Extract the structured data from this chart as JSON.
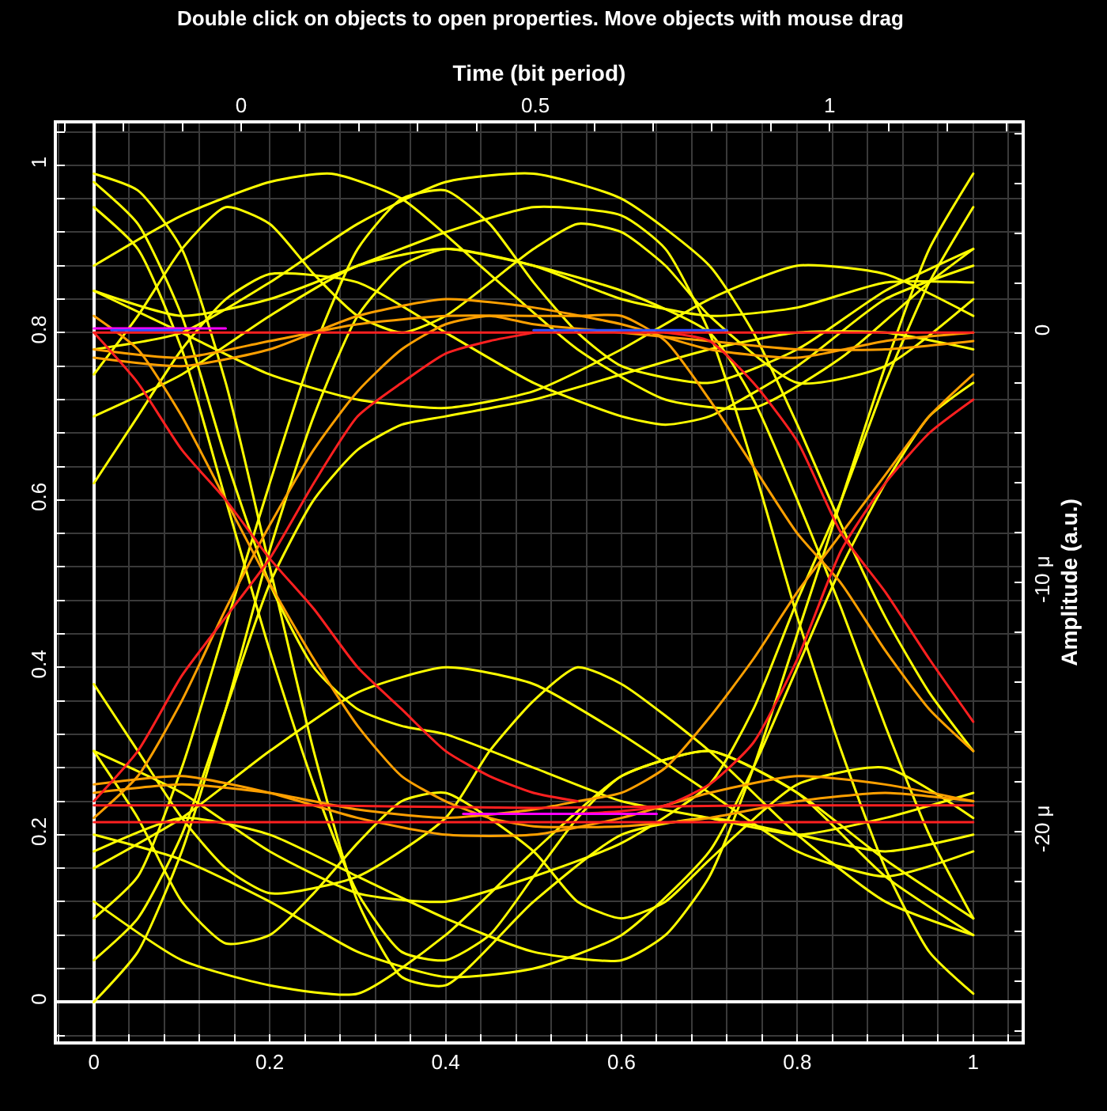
{
  "chart_data": {
    "type": "line",
    "x2label": "Time (bit period)",
    "y2label": "Amplitude (a.u.)",
    "annotations": [
      "Double click on objects to open properties. Move objects with mouse drag"
    ],
    "xlim": [
      -0.042,
      1.055
    ],
    "ylim": [
      -0.047,
      1.05
    ],
    "x2lim": [
      -0.313,
      1.326
    ],
    "y2lim": [
      -28.4,
      8.4
    ],
    "xticks": [
      {
        "value": -0.04,
        "label": null
      },
      0,
      {
        "value": 0.04,
        "label": null
      },
      {
        "value": 0.08,
        "label": null
      },
      {
        "value": 0.12,
        "label": null
      },
      {
        "value": 0.16,
        "label": null
      },
      0.2,
      {
        "value": 0.24,
        "label": null
      },
      {
        "value": 0.28,
        "label": null
      },
      {
        "value": 0.32,
        "label": null
      },
      {
        "value": 0.36,
        "label": null
      },
      0.4,
      {
        "value": 0.44,
        "label": null
      },
      {
        "value": 0.48,
        "label": null
      },
      {
        "value": 0.52,
        "label": null
      },
      {
        "value": 0.56,
        "label": null
      },
      0.6,
      {
        "value": 0.64,
        "label": null
      },
      {
        "value": 0.68,
        "label": null
      },
      {
        "value": 0.72,
        "label": null
      },
      {
        "value": 0.76,
        "label": null
      },
      0.8,
      {
        "value": 0.84,
        "label": null
      },
      {
        "value": 0.88,
        "label": null
      },
      {
        "value": 0.92,
        "label": null
      },
      {
        "value": 0.96,
        "label": null
      },
      1,
      {
        "value": 1.04,
        "label": null
      }
    ],
    "yticks": [
      {
        "value": -0.04,
        "label": null
      },
      0,
      {
        "value": 0.04,
        "label": null
      },
      {
        "value": 0.08,
        "label": null
      },
      {
        "value": 0.12,
        "label": null
      },
      {
        "value": 0.16,
        "label": null
      },
      0.2,
      {
        "value": 0.24,
        "label": null
      },
      {
        "value": 0.28,
        "label": null
      },
      {
        "value": 0.32,
        "label": null
      },
      {
        "value": 0.36,
        "label": null
      },
      0.4,
      {
        "value": 0.44,
        "label": null
      },
      {
        "value": 0.48,
        "label": null
      },
      {
        "value": 0.52,
        "label": null
      },
      {
        "value": 0.56,
        "label": null
      },
      0.6,
      {
        "value": 0.64,
        "label": null
      },
      {
        "value": 0.68,
        "label": null
      },
      {
        "value": 0.72,
        "label": null
      },
      {
        "value": 0.76,
        "label": null
      },
      0.8,
      {
        "value": 0.84,
        "label": null
      },
      {
        "value": 0.88,
        "label": null
      },
      {
        "value": 0.92,
        "label": null
      },
      {
        "value": 0.96,
        "label": null
      },
      1,
      {
        "value": 1.04,
        "label": null
      }
    ],
    "x2ticks": [
      {
        "value": -0.3,
        "label": null
      },
      {
        "value": -0.2,
        "label": null
      },
      {
        "value": -0.1,
        "label": null
      },
      0,
      {
        "value": 0.1,
        "label": null
      },
      {
        "value": 0.2,
        "label": null
      },
      {
        "value": 0.3,
        "label": null
      },
      {
        "value": 0.4,
        "label": null
      },
      0.5,
      {
        "value": 0.6,
        "label": null
      },
      {
        "value": 0.7,
        "label": null
      },
      {
        "value": 0.8,
        "label": null
      },
      {
        "value": 0.9,
        "label": null
      },
      1,
      {
        "value": 1.1,
        "label": null
      },
      {
        "value": 1.2,
        "label": null
      },
      {
        "value": 1.3,
        "label": null
      }
    ],
    "y2ticks": [
      {
        "value": -28,
        "label": null
      },
      {
        "value": -26,
        "label": null
      },
      {
        "value": -24,
        "label": null
      },
      {
        "value": -22,
        "label": null
      },
      {
        "value": -20,
        "label": "-20 μ"
      },
      {
        "value": -18,
        "label": null
      },
      {
        "value": -16,
        "label": null
      },
      {
        "value": -14,
        "label": null
      },
      {
        "value": -12,
        "label": null
      },
      {
        "value": -10,
        "label": "-10 μ"
      },
      {
        "value": -8,
        "label": null
      },
      {
        "value": -6,
        "label": null
      },
      {
        "value": -4,
        "label": null
      },
      {
        "value": -2,
        "label": null
      },
      0,
      {
        "value": 2,
        "label": null
      },
      {
        "value": 4,
        "label": null
      },
      {
        "value": 6,
        "label": null
      },
      {
        "value": 8,
        "label": null
      }
    ],
    "grid": true,
    "marker": "none",
    "line_style": "solid",
    "series": [
      {
        "color": "#ffff00",
        "x": [
          0,
          0.1,
          0.2,
          0.27,
          0.35,
          0.45,
          0.55,
          0.65,
          0.75,
          0.85,
          0.95,
          1
        ],
        "values": [
          0.88,
          0.94,
          0.98,
          0.99,
          0.96,
          0.87,
          0.78,
          0.72,
          0.71,
          0.77,
          0.86,
          0.9
        ]
      },
      {
        "color": "#ffff00",
        "x": [
          0,
          0.1,
          0.2,
          0.3,
          0.4,
          0.5,
          0.6,
          0.7,
          0.8,
          0.9,
          1
        ],
        "values": [
          0.12,
          0.05,
          0.02,
          0.01,
          0.08,
          0.18,
          0.27,
          0.3,
          0.25,
          0.15,
          0.08
        ]
      },
      {
        "color": "#ffff00",
        "x": [
          0,
          0.05,
          0.1,
          0.15,
          0.2,
          0.25,
          0.3,
          0.35,
          0.4,
          0.45,
          0.5,
          0.55,
          0.6,
          0.7,
          0.8,
          0.9,
          1
        ],
        "values": [
          0.1,
          0.15,
          0.28,
          0.45,
          0.62,
          0.78,
          0.9,
          0.96,
          0.97,
          0.93,
          0.86,
          0.8,
          0.76,
          0.74,
          0.78,
          0.85,
          0.9
        ]
      },
      {
        "color": "#ffff00",
        "x": [
          0,
          0.05,
          0.1,
          0.15,
          0.2,
          0.25,
          0.3,
          0.35,
          0.4,
          0.45,
          0.5,
          0.55,
          0.6,
          0.7,
          0.8,
          0.9,
          1
        ],
        "values": [
          0.95,
          0.9,
          0.78,
          0.6,
          0.42,
          0.26,
          0.13,
          0.06,
          0.05,
          0.08,
          0.15,
          0.22,
          0.27,
          0.3,
          0.25,
          0.17,
          0.1
        ]
      },
      {
        "color": "#ffff00",
        "x": [
          0,
          0.1,
          0.2,
          0.3,
          0.4,
          0.5,
          0.6,
          0.7,
          0.75,
          0.8,
          0.85,
          0.9,
          0.95,
          1
        ],
        "values": [
          0.7,
          0.75,
          0.82,
          0.88,
          0.9,
          0.88,
          0.85,
          0.8,
          0.72,
          0.6,
          0.47,
          0.33,
          0.2,
          0.1
        ]
      },
      {
        "color": "#ffff00",
        "x": [
          0,
          0.1,
          0.2,
          0.3,
          0.4,
          0.5,
          0.6,
          0.7,
          0.75,
          0.8,
          0.85,
          0.9,
          0.95,
          1
        ],
        "values": [
          0.3,
          0.25,
          0.18,
          0.13,
          0.12,
          0.15,
          0.19,
          0.26,
          0.35,
          0.48,
          0.6,
          0.74,
          0.86,
          0.95
        ]
      },
      {
        "color": "#ffff00",
        "x": [
          0,
          0.1,
          0.2,
          0.3,
          0.4,
          0.5,
          0.6,
          0.7,
          0.8,
          0.9,
          1
        ],
        "values": [
          0.85,
          0.8,
          0.75,
          0.72,
          0.71,
          0.73,
          0.78,
          0.84,
          0.88,
          0.87,
          0.82
        ]
      },
      {
        "color": "#ffff00",
        "x": [
          0,
          0.1,
          0.2,
          0.3,
          0.4,
          0.5,
          0.6,
          0.7,
          0.8,
          0.9,
          1
        ],
        "values": [
          0.16,
          0.22,
          0.3,
          0.37,
          0.4,
          0.38,
          0.32,
          0.25,
          0.18,
          0.15,
          0.18
        ]
      },
      {
        "color": "#ffff00",
        "x": [
          0,
          0.05,
          0.1,
          0.15,
          0.2,
          0.25,
          0.3,
          0.35,
          0.4,
          0.5,
          0.55,
          0.6,
          0.65,
          0.7,
          0.8,
          0.9,
          1
        ],
        "values": [
          0.75,
          0.82,
          0.9,
          0.95,
          0.93,
          0.87,
          0.82,
          0.8,
          0.82,
          0.9,
          0.93,
          0.92,
          0.88,
          0.82,
          0.74,
          0.76,
          0.84
        ]
      },
      {
        "color": "#ffff00",
        "x": [
          0,
          0.05,
          0.1,
          0.15,
          0.2,
          0.25,
          0.3,
          0.35,
          0.4,
          0.5,
          0.55,
          0.6,
          0.65,
          0.7,
          0.8,
          0.9,
          1
        ],
        "values": [
          0.3,
          0.22,
          0.12,
          0.07,
          0.08,
          0.13,
          0.19,
          0.24,
          0.25,
          0.18,
          0.12,
          0.1,
          0.12,
          0.17,
          0.26,
          0.28,
          0.22
        ]
      },
      {
        "color": "#ffff00",
        "x": [
          0,
          0.05,
          0.1,
          0.15,
          0.2,
          0.25,
          0.3,
          0.35,
          0.4,
          0.5,
          0.6,
          0.7,
          0.8,
          0.9,
          1
        ],
        "values": [
          0.98,
          0.93,
          0.82,
          0.65,
          0.5,
          0.4,
          0.35,
          0.33,
          0.32,
          0.28,
          0.24,
          0.22,
          0.2,
          0.22,
          0.25
        ]
      },
      {
        "color": "#ffff00",
        "x": [
          0,
          0.05,
          0.1,
          0.15,
          0.2,
          0.25,
          0.3,
          0.35,
          0.4,
          0.5,
          0.6,
          0.7,
          0.8,
          0.9,
          1
        ],
        "values": [
          0.05,
          0.1,
          0.2,
          0.35,
          0.5,
          0.6,
          0.66,
          0.69,
          0.7,
          0.72,
          0.75,
          0.78,
          0.8,
          0.8,
          0.78
        ]
      },
      {
        "color": "#ffff00",
        "x": [
          0,
          0.1,
          0.2,
          0.3,
          0.4,
          0.5,
          0.6,
          0.7,
          0.75,
          0.8,
          0.85,
          0.9,
          0.95,
          1
        ],
        "values": [
          0.2,
          0.17,
          0.12,
          0.06,
          0.03,
          0.04,
          0.08,
          0.18,
          0.28,
          0.4,
          0.52,
          0.62,
          0.7,
          0.74
        ]
      },
      {
        "color": "#ffff00",
        "x": [
          0,
          0.1,
          0.2,
          0.3,
          0.4,
          0.5,
          0.6,
          0.7,
          0.75,
          0.8,
          0.85,
          0.9,
          0.95,
          1
        ],
        "values": [
          0.78,
          0.8,
          0.86,
          0.93,
          0.98,
          0.99,
          0.96,
          0.88,
          0.8,
          0.69,
          0.57,
          0.46,
          0.37,
          0.3
        ]
      },
      {
        "color": "#ffff00",
        "x": [
          0,
          0.05,
          0.1,
          0.15,
          0.2,
          0.3,
          0.4,
          0.5,
          0.6,
          0.65,
          0.7,
          0.8,
          0.9,
          1
        ],
        "values": [
          0.62,
          0.7,
          0.78,
          0.84,
          0.87,
          0.86,
          0.8,
          0.74,
          0.7,
          0.69,
          0.7,
          0.76,
          0.84,
          0.88
        ]
      },
      {
        "color": "#ffff00",
        "x": [
          0,
          0.05,
          0.1,
          0.15,
          0.2,
          0.3,
          0.4,
          0.45,
          0.5,
          0.55,
          0.6,
          0.7,
          0.8,
          0.9,
          1
        ],
        "values": [
          0.38,
          0.3,
          0.22,
          0.16,
          0.13,
          0.15,
          0.22,
          0.3,
          0.36,
          0.4,
          0.38,
          0.3,
          0.2,
          0.12,
          0.08
        ]
      },
      {
        "color": "#ffff00",
        "x": [
          0,
          0.1,
          0.2,
          0.3,
          0.4,
          0.5,
          0.6,
          0.65,
          0.7,
          0.75,
          0.8,
          0.85,
          0.9,
          0.95,
          1
        ],
        "values": [
          0.18,
          0.22,
          0.2,
          0.15,
          0.1,
          0.06,
          0.05,
          0.08,
          0.15,
          0.28,
          0.44,
          0.6,
          0.76,
          0.9,
          0.99
        ]
      },
      {
        "color": "#ffff00",
        "x": [
          0,
          0.1,
          0.2,
          0.3,
          0.4,
          0.5,
          0.6,
          0.65,
          0.7,
          0.75,
          0.8,
          0.85,
          0.9,
          0.95,
          1
        ],
        "values": [
          0.85,
          0.82,
          0.84,
          0.88,
          0.92,
          0.95,
          0.94,
          0.9,
          0.8,
          0.64,
          0.46,
          0.3,
          0.16,
          0.06,
          0.01
        ]
      },
      {
        "color": "#ffff00",
        "x": [
          0,
          0.05,
          0.1,
          0.15,
          0.2,
          0.25,
          0.3,
          0.35,
          0.4,
          0.5,
          0.6,
          0.7,
          0.8,
          0.9,
          1
        ],
        "values": [
          0,
          0.06,
          0.18,
          0.35,
          0.54,
          0.7,
          0.82,
          0.88,
          0.9,
          0.88,
          0.84,
          0.82,
          0.83,
          0.86,
          0.86
        ]
      },
      {
        "color": "#ffff00",
        "x": [
          0,
          0.05,
          0.1,
          0.15,
          0.2,
          0.25,
          0.3,
          0.35,
          0.4,
          0.5,
          0.6,
          0.7,
          0.8,
          0.9,
          1
        ],
        "values": [
          0.99,
          0.97,
          0.9,
          0.74,
          0.52,
          0.3,
          0.12,
          0.03,
          0.02,
          0.12,
          0.2,
          0.22,
          0.2,
          0.18,
          0.2
        ]
      },
      {
        "color": "#ffa000",
        "x": [
          0,
          0.05,
          0.1,
          0.15,
          0.2,
          0.25,
          0.3,
          0.35,
          0.4,
          0.45,
          0.5,
          0.6,
          0.7,
          0.8,
          0.9,
          1
        ],
        "values": [
          0.22,
          0.27,
          0.36,
          0.47,
          0.57,
          0.66,
          0.73,
          0.78,
          0.81,
          0.82,
          0.81,
          0.8,
          0.79,
          0.78,
          0.78,
          0.79
        ]
      },
      {
        "color": "#ffa000",
        "x": [
          0,
          0.05,
          0.1,
          0.15,
          0.2,
          0.25,
          0.3,
          0.35,
          0.4,
          0.45,
          0.5,
          0.6,
          0.7,
          0.8,
          0.9,
          1
        ],
        "values": [
          0.82,
          0.78,
          0.7,
          0.6,
          0.5,
          0.41,
          0.33,
          0.27,
          0.24,
          0.22,
          0.21,
          0.21,
          0.22,
          0.24,
          0.25,
          0.24
        ]
      },
      {
        "color": "#ffa000",
        "x": [
          0,
          0.1,
          0.2,
          0.3,
          0.4,
          0.5,
          0.55,
          0.6,
          0.65,
          0.7,
          0.75,
          0.8,
          0.85,
          0.9,
          0.95,
          1
        ],
        "values": [
          0.78,
          0.77,
          0.79,
          0.81,
          0.82,
          0.82,
          0.82,
          0.82,
          0.79,
          0.72,
          0.64,
          0.56,
          0.5,
          0.42,
          0.35,
          0.3
        ]
      },
      {
        "color": "#ffa000",
        "x": [
          0,
          0.1,
          0.2,
          0.3,
          0.4,
          0.5,
          0.55,
          0.6,
          0.65,
          0.7,
          0.75,
          0.8,
          0.85,
          0.9,
          0.95,
          1
        ],
        "values": [
          0.25,
          0.26,
          0.25,
          0.23,
          0.22,
          0.23,
          0.24,
          0.25,
          0.28,
          0.34,
          0.41,
          0.49,
          0.56,
          0.63,
          0.7,
          0.75
        ]
      },
      {
        "color": "#ffa000",
        "x": [
          0,
          0.1,
          0.2,
          0.3,
          0.4,
          0.5,
          0.6,
          0.7,
          0.8,
          0.9,
          1
        ],
        "values": [
          0.77,
          0.76,
          0.78,
          0.82,
          0.84,
          0.83,
          0.81,
          0.78,
          0.77,
          0.79,
          0.8
        ]
      },
      {
        "color": "#ffa000",
        "x": [
          0,
          0.1,
          0.2,
          0.3,
          0.4,
          0.5,
          0.6,
          0.7,
          0.8,
          0.9,
          1
        ],
        "values": [
          0.26,
          0.27,
          0.25,
          0.22,
          0.2,
          0.2,
          0.22,
          0.25,
          0.27,
          0.26,
          0.24
        ]
      },
      {
        "color": "#ff2020",
        "x": [
          0,
          0.25,
          0.5,
          0.75,
          1
        ],
        "values": [
          0.8,
          0.8,
          0.8,
          0.8,
          0.8
        ]
      },
      {
        "color": "#ff2020",
        "x": [
          0,
          0.25,
          0.5,
          0.75,
          1
        ],
        "values": [
          0.235,
          0.235,
          0.232,
          0.235,
          0.235
        ]
      },
      {
        "color": "#ff2020",
        "x": [
          0,
          0.5,
          1
        ],
        "values": [
          0.215,
          0.215,
          0.215
        ]
      },
      {
        "color": "#ff2020",
        "x": [
          0,
          0.05,
          0.1,
          0.15,
          0.2,
          0.25,
          0.3,
          0.35,
          0.4,
          0.45,
          0.5
        ],
        "values": [
          0.24,
          0.3,
          0.39,
          0.46,
          0.53,
          0.62,
          0.7,
          0.74,
          0.775,
          0.79,
          0.8
        ]
      },
      {
        "color": "#ff2020",
        "x": [
          0,
          0.05,
          0.1,
          0.15,
          0.2,
          0.25,
          0.3,
          0.35,
          0.4,
          0.45,
          0.5,
          0.55
        ],
        "values": [
          0.8,
          0.74,
          0.66,
          0.6,
          0.53,
          0.47,
          0.4,
          0.35,
          0.3,
          0.27,
          0.25,
          0.24
        ]
      },
      {
        "color": "#ff2020",
        "x": [
          0.65,
          0.7,
          0.75,
          0.8,
          0.85,
          0.9,
          0.95,
          1
        ],
        "values": [
          0.8,
          0.79,
          0.74,
          0.67,
          0.56,
          0.49,
          0.41,
          0.335
        ]
      },
      {
        "color": "#ff2020",
        "x": [
          0.55,
          0.6,
          0.65,
          0.7,
          0.75,
          0.8,
          0.85,
          0.9,
          0.95,
          1
        ],
        "values": [
          0.225,
          0.228,
          0.235,
          0.26,
          0.31,
          0.41,
          0.54,
          0.62,
          0.68,
          0.72
        ]
      },
      {
        "color": "#ff00ff",
        "x": [
          0,
          0.05,
          0.1,
          0.15
        ],
        "values": [
          0.805,
          0.805,
          0.805,
          0.805
        ]
      },
      {
        "color": "#ff00ff",
        "x": [
          0.42,
          0.5,
          0.58,
          0.64
        ],
        "values": [
          0.225,
          0.225,
          0.225,
          0.225
        ]
      },
      {
        "color": "#3050ff",
        "x": [
          0.02,
          0.06,
          0.1
        ],
        "values": [
          0.803,
          0.803,
          0.803
        ]
      },
      {
        "color": "#3050ff",
        "x": [
          0.5,
          0.56,
          0.62,
          0.68,
          0.72
        ],
        "values": [
          0.803,
          0.803,
          0.803,
          0.803,
          0.803
        ]
      }
    ]
  }
}
